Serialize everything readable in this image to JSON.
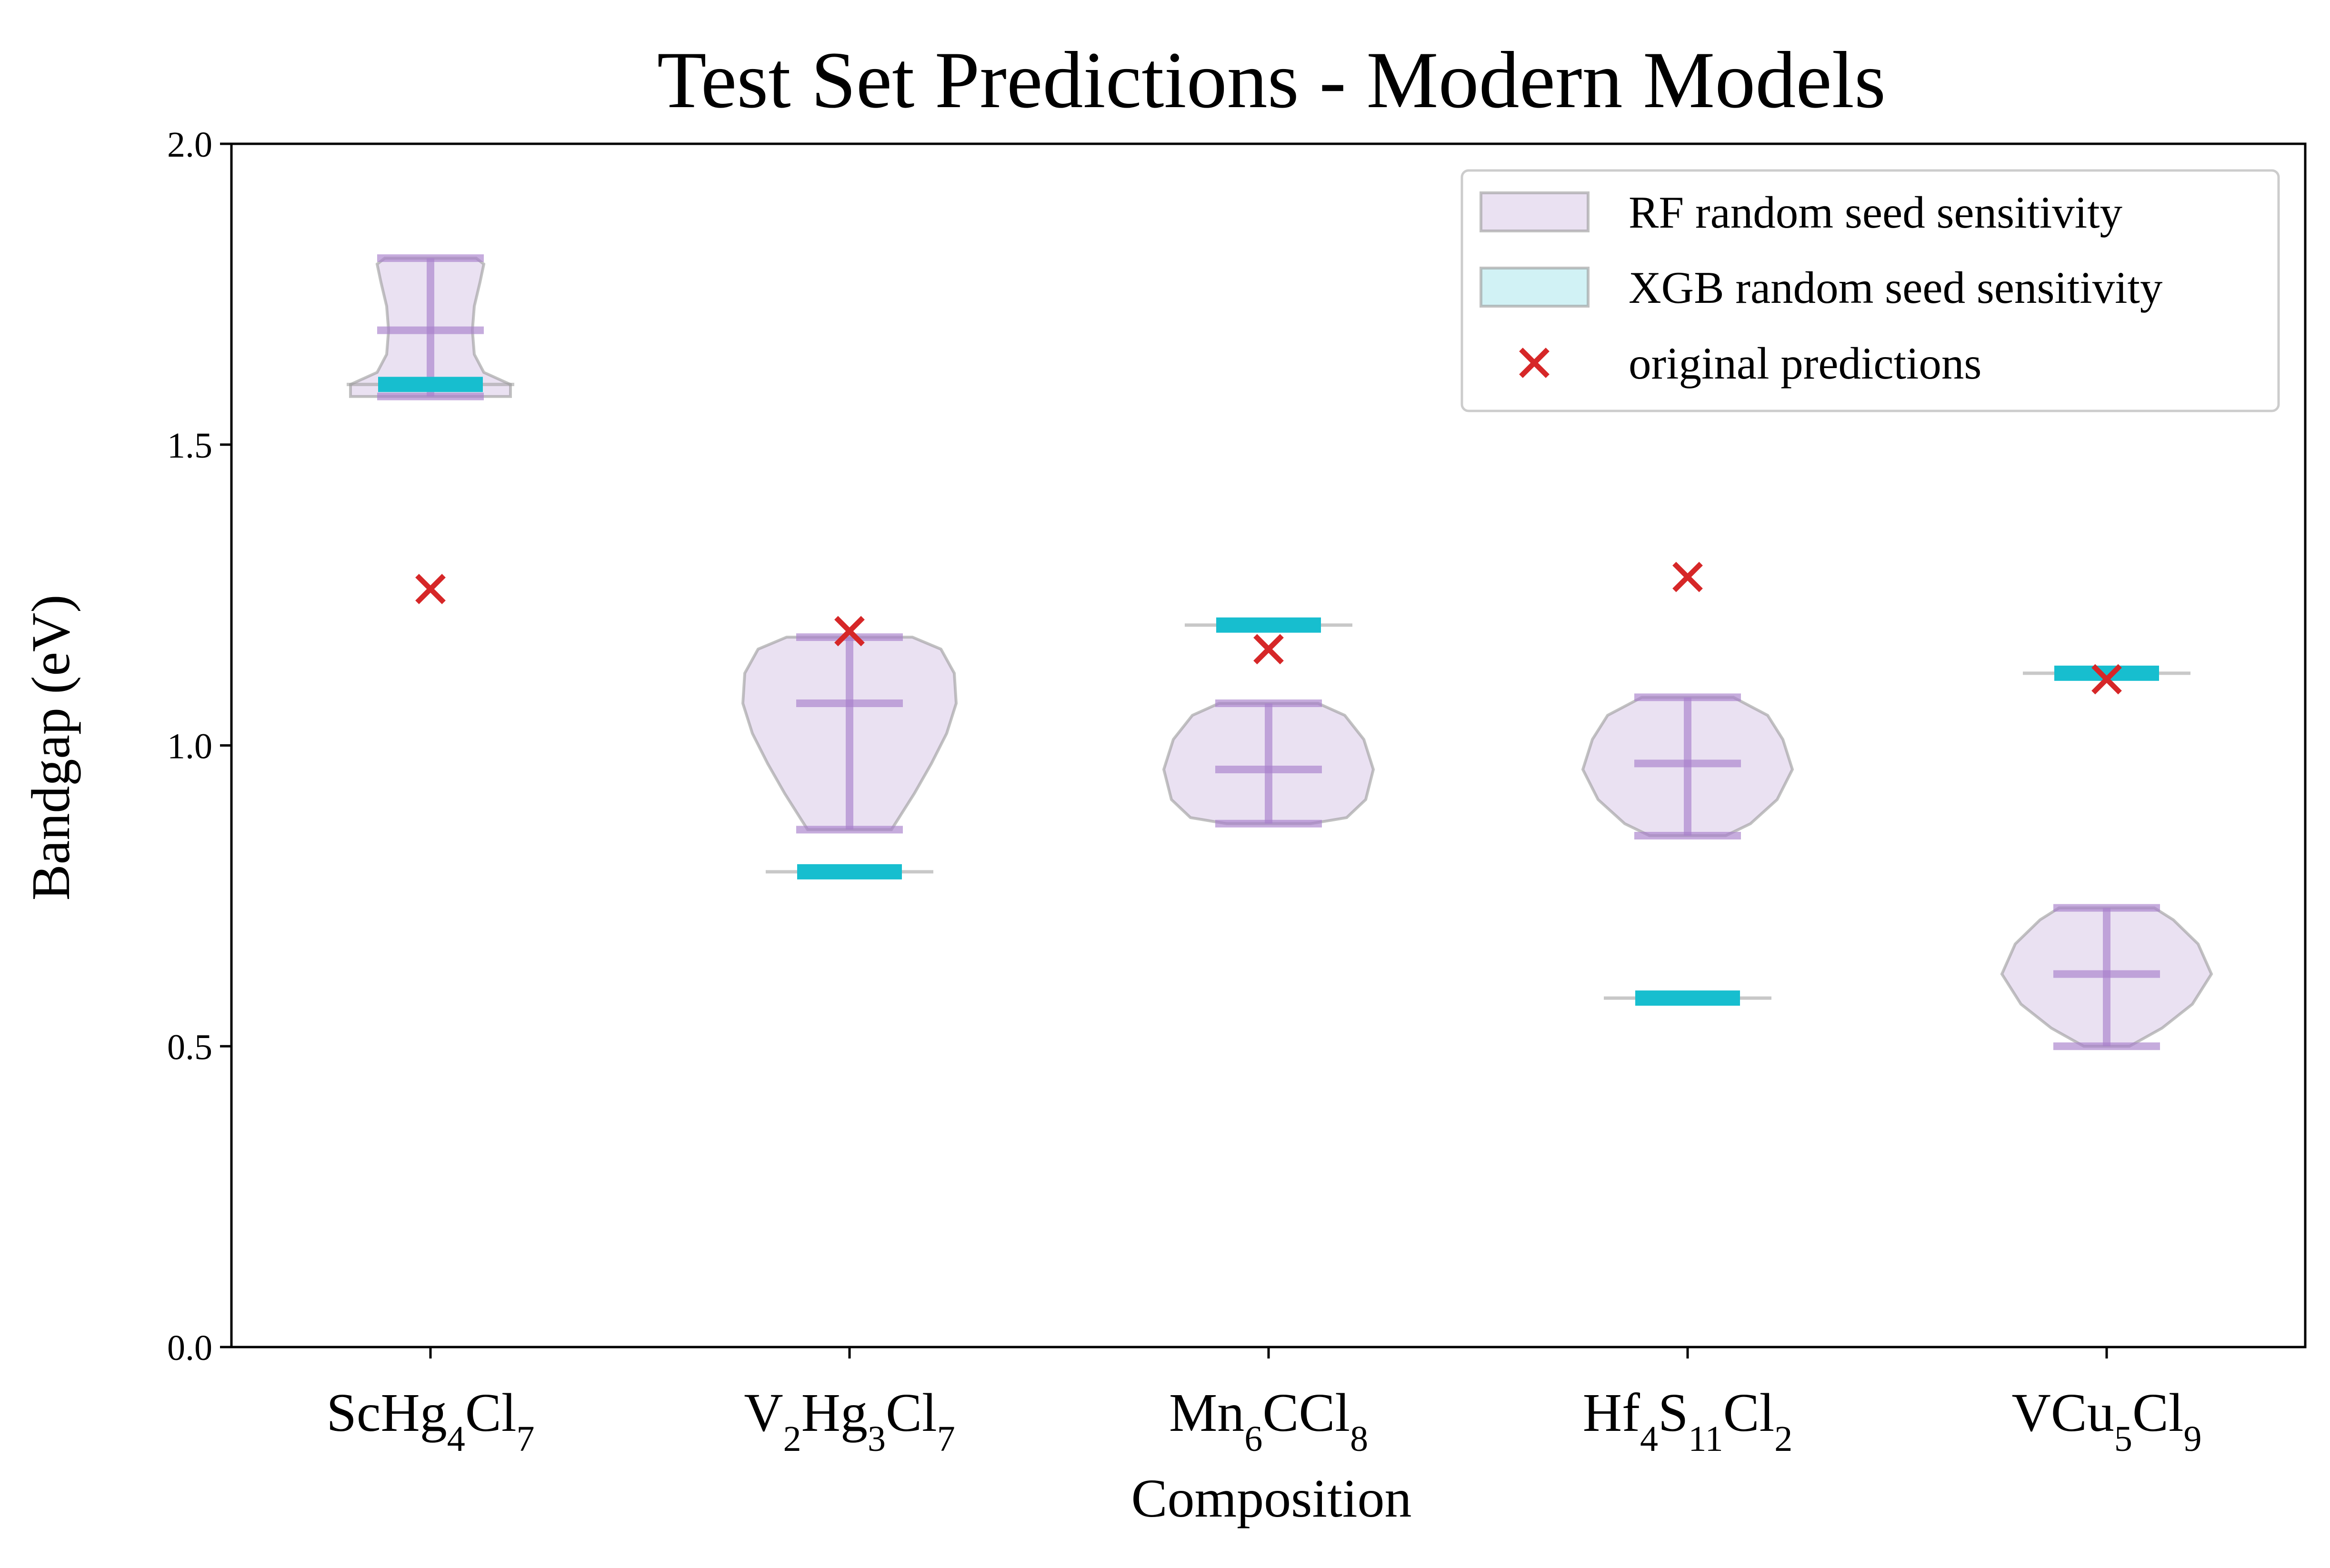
{
  "chart_data": {
    "type": "violin",
    "title": "Test Set Predictions - Modern Models",
    "xlabel": "Composition",
    "ylabel": "Bandgap (eV)",
    "ylim": [
      0.0,
      2.0
    ],
    "yticks": [
      "0.0",
      "0.5",
      "1.0",
      "1.5",
      "2.0"
    ],
    "grid": false,
    "legend_position": "top-right",
    "categories": [
      {
        "base": "ScHg",
        "parts": [
          [
            "ScHg",
            ""
          ],
          [
            "4",
            "sub"
          ],
          [
            "Cl",
            ""
          ],
          [
            "7",
            "sub"
          ]
        ]
      },
      {
        "base": "V2Hg3Cl7",
        "parts": [
          [
            "V",
            ""
          ],
          [
            "2",
            "sub"
          ],
          [
            "Hg",
            ""
          ],
          [
            "3",
            "sub"
          ],
          [
            "Cl",
            ""
          ],
          [
            "7",
            "sub"
          ]
        ]
      },
      {
        "base": "Mn6CCl8",
        "parts": [
          [
            "Mn",
            ""
          ],
          [
            "6",
            "sub"
          ],
          [
            "CCl",
            ""
          ],
          [
            "8",
            "sub"
          ]
        ]
      },
      {
        "base": "Hf4S11Cl2",
        "parts": [
          [
            "Hf",
            ""
          ],
          [
            "4",
            "sub"
          ],
          [
            "S",
            ""
          ],
          [
            "11",
            "sub"
          ],
          [
            "Cl",
            ""
          ],
          [
            "2",
            "sub"
          ]
        ]
      },
      {
        "base": "VCu5Cl9",
        "parts": [
          [
            "VCu",
            ""
          ],
          [
            "5",
            "sub"
          ],
          [
            "Cl",
            ""
          ],
          [
            "9",
            "sub"
          ]
        ]
      }
    ],
    "legend": [
      {
        "label": "RF random seed sensitivity",
        "color": "#9467bd"
      },
      {
        "label": "XGB random seed sensitivity",
        "color": "#17becf"
      },
      {
        "label": "original predictions",
        "color": "#d62728"
      }
    ],
    "rf": [
      {
        "min": 1.58,
        "max": 1.81,
        "median": 1.69,
        "profile": [
          [
            1.58,
            0.42
          ],
          [
            1.6,
            0.42
          ],
          [
            1.62,
            0.28
          ],
          [
            1.65,
            0.23
          ],
          [
            1.69,
            0.22
          ],
          [
            1.73,
            0.23
          ],
          [
            1.77,
            0.26
          ],
          [
            1.8,
            0.28
          ],
          [
            1.81,
            0.24
          ]
        ]
      },
      {
        "min": 0.86,
        "max": 1.18,
        "median": 1.07,
        "profile": [
          [
            0.86,
            0.22
          ],
          [
            0.88,
            0.26
          ],
          [
            0.92,
            0.34
          ],
          [
            0.97,
            0.43
          ],
          [
            1.02,
            0.51
          ],
          [
            1.07,
            0.56
          ],
          [
            1.12,
            0.55
          ],
          [
            1.16,
            0.48
          ],
          [
            1.18,
            0.33
          ]
        ]
      },
      {
        "min": 0.87,
        "max": 1.07,
        "median": 0.96,
        "profile": [
          [
            0.87,
            0.22
          ],
          [
            0.88,
            0.41
          ],
          [
            0.91,
            0.51
          ],
          [
            0.96,
            0.55
          ],
          [
            1.01,
            0.5
          ],
          [
            1.05,
            0.4
          ],
          [
            1.07,
            0.26
          ]
        ]
      },
      {
        "min": 0.85,
        "max": 1.08,
        "median": 0.97,
        "profile": [
          [
            0.85,
            0.2
          ],
          [
            0.87,
            0.33
          ],
          [
            0.91,
            0.47
          ],
          [
            0.96,
            0.55
          ],
          [
            1.01,
            0.5
          ],
          [
            1.05,
            0.42
          ],
          [
            1.08,
            0.24
          ]
        ]
      },
      {
        "min": 0.5,
        "max": 0.73,
        "median": 0.62,
        "profile": [
          [
            0.5,
            0.12
          ],
          [
            0.53,
            0.29
          ],
          [
            0.57,
            0.45
          ],
          [
            0.62,
            0.55
          ],
          [
            0.67,
            0.48
          ],
          [
            0.71,
            0.35
          ],
          [
            0.73,
            0.25
          ]
        ]
      }
    ],
    "xgb": [
      {
        "value": 1.6,
        "line_halfwidth": 0.22
      },
      {
        "value": 0.79,
        "line_halfwidth": 0.22
      },
      {
        "value": 1.2,
        "line_halfwidth": 0.22
      },
      {
        "value": 0.58,
        "line_halfwidth": 0.22
      },
      {
        "value": 1.12,
        "line_halfwidth": 0.22
      }
    ],
    "original_predictions": [
      1.26,
      1.19,
      1.16,
      1.28,
      1.11
    ],
    "colors": {
      "rf_fill": "#9467bd",
      "rf_line": "#a77fcb",
      "xgb": "#17becf",
      "marker": "#d62728",
      "edge": "#9a9a9a"
    }
  }
}
